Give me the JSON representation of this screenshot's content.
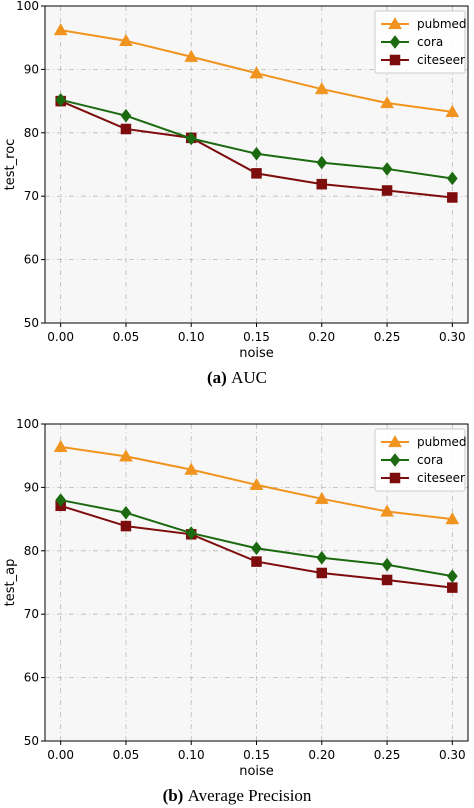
{
  "chart_data": [
    {
      "type": "line",
      "caption_tag": "(a)",
      "caption_text": "AUC",
      "xlabel": "noise",
      "ylabel": "test_roc",
      "x": [
        0.0,
        0.05,
        0.1,
        0.15,
        0.2,
        0.25,
        0.3
      ],
      "x_tick_labels": [
        "0.00",
        "0.05",
        "0.10",
        "0.15",
        "0.20",
        "0.25",
        "0.30"
      ],
      "xlim": [
        -0.012,
        0.312
      ],
      "ylim": [
        50,
        100
      ],
      "y_ticks": [
        50,
        60,
        70,
        80,
        90,
        100
      ],
      "grid": true,
      "legend_position": "top-right",
      "series": [
        {
          "name": "pubmed",
          "color": "#f0941f",
          "marker": "triangle",
          "values": [
            96.2,
            94.5,
            92.0,
            89.4,
            86.9,
            84.7,
            83.3
          ]
        },
        {
          "name": "cora",
          "color": "#1c6a10",
          "marker": "diamond",
          "values": [
            85.2,
            82.7,
            79.1,
            76.7,
            75.3,
            74.3,
            72.8
          ]
        },
        {
          "name": "citeseer",
          "color": "#7d0c0c",
          "marker": "square",
          "values": [
            85.0,
            80.6,
            79.2,
            73.6,
            71.9,
            70.9,
            69.8
          ]
        }
      ]
    },
    {
      "type": "line",
      "caption_tag": "(b)",
      "caption_text": "Average Precision",
      "xlabel": "noise",
      "ylabel": "test_ap",
      "x": [
        0.0,
        0.05,
        0.1,
        0.15,
        0.2,
        0.25,
        0.3
      ],
      "x_tick_labels": [
        "0.00",
        "0.05",
        "0.10",
        "0.15",
        "0.20",
        "0.25",
        "0.30"
      ],
      "xlim": [
        -0.012,
        0.312
      ],
      "ylim": [
        50,
        100
      ],
      "y_ticks": [
        50,
        60,
        70,
        80,
        90,
        100
      ],
      "grid": true,
      "legend_position": "top-right",
      "series": [
        {
          "name": "pubmed",
          "color": "#f0941f",
          "marker": "triangle",
          "values": [
            96.4,
            94.9,
            92.8,
            90.4,
            88.2,
            86.2,
            85.0
          ]
        },
        {
          "name": "cora",
          "color": "#1c6a10",
          "marker": "diamond",
          "values": [
            88.0,
            86.0,
            82.8,
            80.4,
            78.9,
            77.8,
            76.0
          ]
        },
        {
          "name": "citeseer",
          "color": "#7d0c0c",
          "marker": "square",
          "values": [
            87.1,
            83.9,
            82.6,
            78.3,
            76.5,
            75.4,
            74.2
          ]
        }
      ]
    }
  ]
}
